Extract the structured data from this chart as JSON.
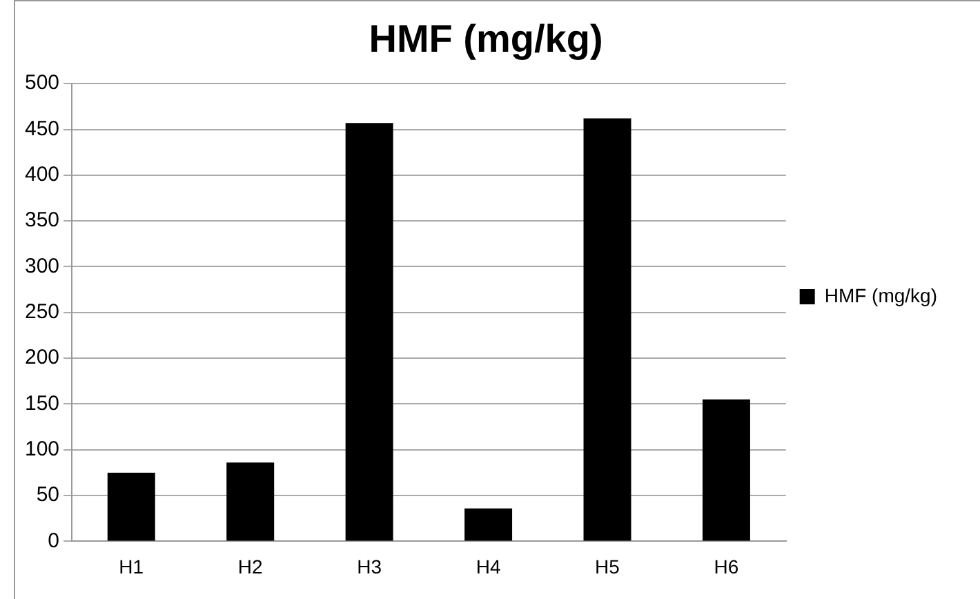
{
  "chart_data": {
    "type": "bar",
    "title": "HMF (mg/kg)",
    "categories": [
      "H1",
      "H2",
      "H3",
      "H4",
      "H5",
      "H6"
    ],
    "series": [
      {
        "name": "HMF (mg/kg)",
        "color": "#000000",
        "values": [
          75,
          86,
          457,
          36,
          462,
          155
        ]
      }
    ],
    "ylim": [
      0,
      500
    ],
    "yticks": [
      0,
      50,
      100,
      150,
      200,
      250,
      300,
      350,
      400,
      450,
      500
    ],
    "grid": "y",
    "legend": "right"
  }
}
